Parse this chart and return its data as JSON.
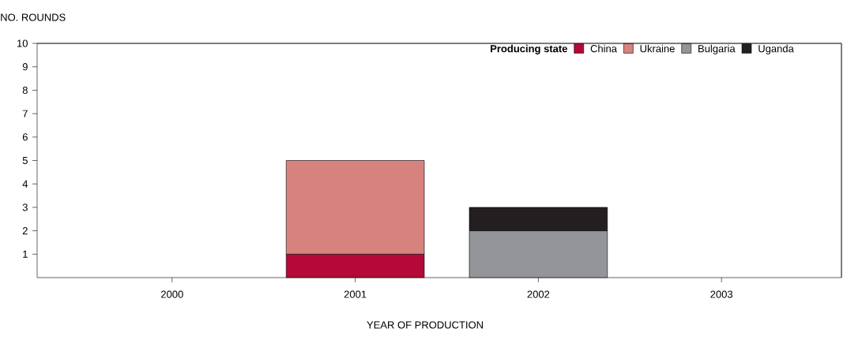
{
  "chart_data": {
    "type": "bar",
    "stacked": true,
    "ylabel": "NO. ROUNDS",
    "xlabel": "YEAR OF PRODUCTION",
    "legend_title": "Producing state",
    "categories": [
      "2000",
      "2001",
      "2002",
      "2003"
    ],
    "series": [
      {
        "name": "China",
        "color": "#b5093a",
        "values": [
          null,
          1,
          null,
          null
        ]
      },
      {
        "name": "Ukraine",
        "color": "#d6837f",
        "values": [
          null,
          4,
          null,
          null
        ]
      },
      {
        "name": "Bulgaria",
        "color": "#939598",
        "values": [
          null,
          null,
          2,
          null
        ]
      },
      {
        "name": "Uganda",
        "color": "#231f20",
        "values": [
          null,
          null,
          1,
          null
        ]
      }
    ],
    "ylim": [
      0,
      10
    ],
    "yticks": [
      1,
      2,
      3,
      4,
      5,
      6,
      7,
      8,
      9,
      10
    ],
    "grid": false,
    "legend": "top right"
  }
}
